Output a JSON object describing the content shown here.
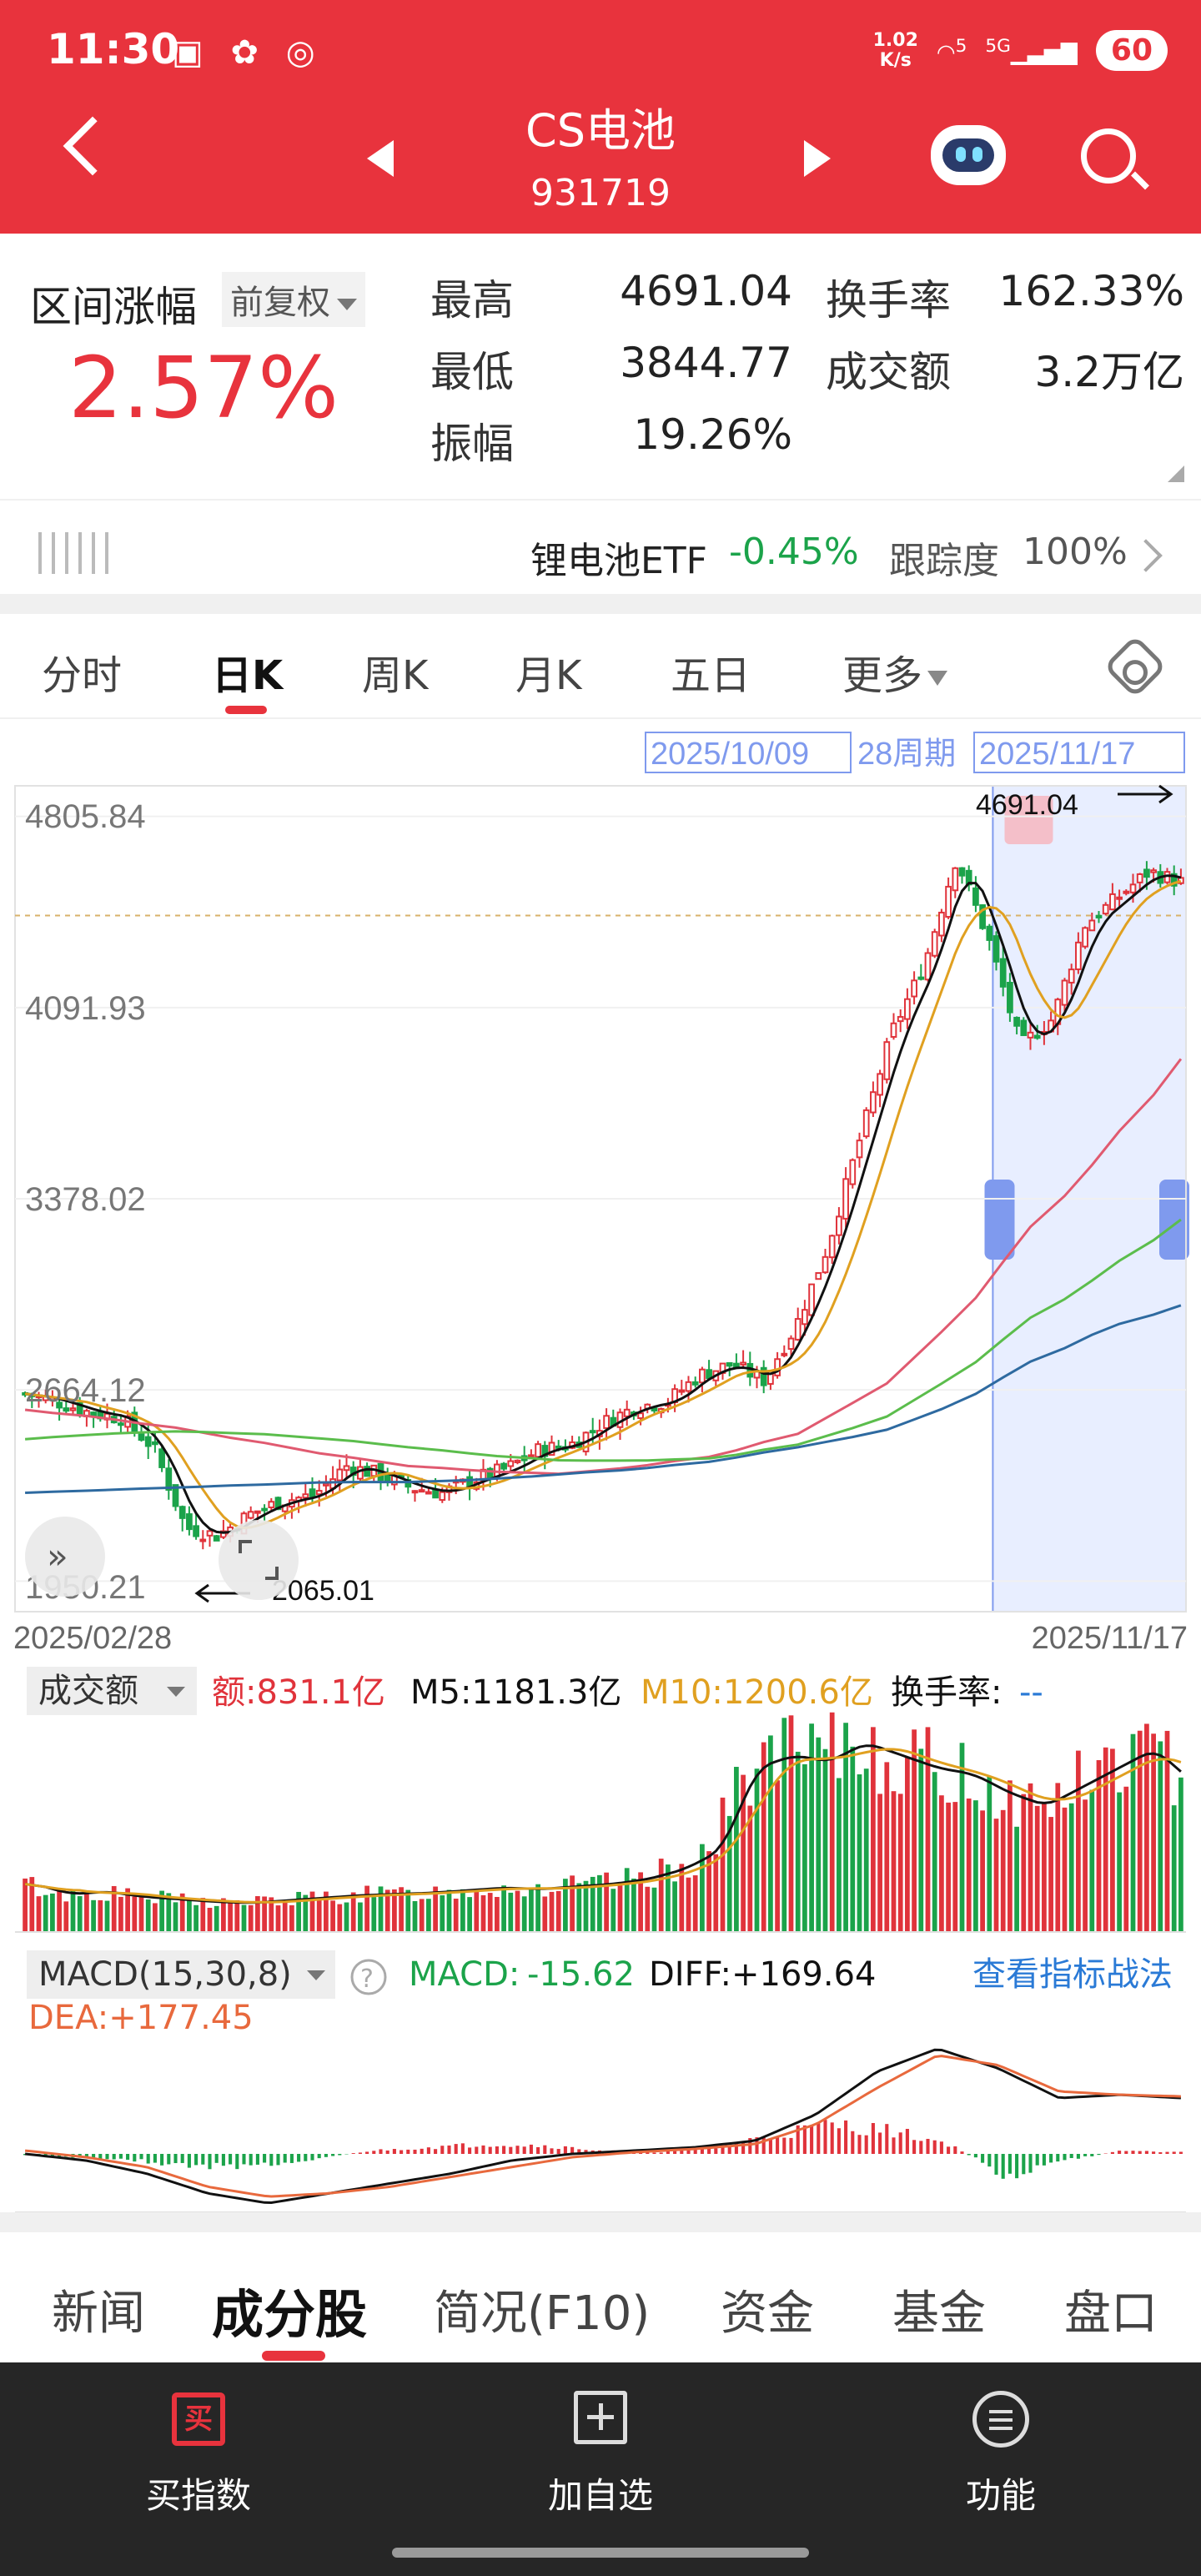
{
  "status_bar": {
    "time": "11:30",
    "net_speed_value": "1.02",
    "net_speed_unit": "K/s",
    "wifi_label": "5",
    "cell_label": "5G",
    "battery": "60"
  },
  "header": {
    "title": "CS电池",
    "code": "931719"
  },
  "stats": {
    "range_label": "区间涨幅",
    "adjust_option": "前复权",
    "range_change": "2.57%",
    "high_label": "最高",
    "high_value": "4691.04",
    "low_label": "最低",
    "low_value": "3844.77",
    "amplitude_label": "振幅",
    "amplitude_value": "19.26%",
    "turnover_label": "换手率",
    "turnover_value": "162.33%",
    "amount_label": "成交额",
    "amount_value": "3.2万亿"
  },
  "etf": {
    "name": "锂电池ETF",
    "change": "-0.45%",
    "tracking_label": "跟踪度",
    "tracking_value": "100%"
  },
  "chart_tabs": [
    "分时",
    "日K",
    "周K",
    "月K",
    "五日",
    "更多"
  ],
  "active_chart_tab": "日K",
  "chart_data": {
    "type": "candlestick",
    "price_axis_ticks": [
      "4805.84",
      "4091.93",
      "3378.02",
      "2664.12",
      "1950.21"
    ],
    "price_axis_values": [
      4805.84,
      4091.93,
      3378.02,
      2664.12,
      1950.21
    ],
    "x_start_label": "2025/02/28",
    "x_end_label": "2025/11/17",
    "high_marker": "4691.04",
    "low_marker": "2065.01",
    "selection": {
      "start": "2025/10/09",
      "period": "28周期",
      "end": "2025/11/17"
    },
    "close_anchors": [
      2650,
      2620,
      2580,
      2560,
      2450,
      2150,
      2120,
      2200,
      2250,
      2270,
      2380,
      2350,
      2300,
      2280,
      2330,
      2370,
      2440,
      2460,
      2540,
      2600,
      2620,
      2720,
      2760,
      2700,
      2900,
      3200,
      3600,
      4000,
      4250,
      4650,
      4350,
      3950,
      4050,
      4400,
      4500,
      4600,
      4560
    ],
    "ma_anchors": {
      "ma_pink": [
        2590,
        2560,
        2520,
        2470,
        2420,
        2380,
        2360,
        2350,
        2380,
        2420,
        2500,
        2650,
        2900,
        3250,
        3550,
        3900
      ],
      "ma_green": [
        2480,
        2500,
        2510,
        2500,
        2480,
        2450,
        2420,
        2400,
        2400,
        2410,
        2460,
        2540,
        2700,
        2920,
        3100,
        3300
      ],
      "ma_blue": [
        2280,
        2290,
        2300,
        2310,
        2320,
        2320,
        2330,
        2350,
        2370,
        2400,
        2450,
        2500,
        2600,
        2760,
        2890,
        2980
      ]
    },
    "volume_panel": {
      "selector": "成交额",
      "amount_label": "额:831.1亿",
      "ma5_label": "M5:1181.3亿",
      "ma10_label": "M10:1200.6亿",
      "turnover_label": "换手率:",
      "turnover_value": "--",
      "bar_anchors": [
        380,
        300,
        320,
        280,
        260,
        240,
        230,
        250,
        270,
        290,
        300,
        310,
        330,
        350,
        340,
        360,
        380,
        420,
        500,
        650,
        1300,
        1400,
        1350,
        1500,
        1400,
        1300,
        1250,
        1100,
        1000,
        1150,
        1300,
        1450,
        1200
      ]
    },
    "macd_panel": {
      "selector": "MACD(15,30,8)",
      "macd_label": "MACD:",
      "macd_value": "-15.62",
      "diff_label": "DIFF:+169.64",
      "dea_label": "DEA:+177.45",
      "strategy_link": "查看指标战法",
      "diff_anchors": [
        0,
        -20,
        -60,
        -120,
        -150,
        -120,
        -90,
        -60,
        -20,
        0,
        10,
        20,
        40,
        120,
        250,
        320,
        260,
        170,
        180,
        170
      ],
      "dea_anchors": [
        10,
        -10,
        -40,
        -100,
        -130,
        -120,
        -100,
        -70,
        -40,
        -10,
        5,
        15,
        30,
        90,
        200,
        300,
        270,
        190,
        180,
        175
      ],
      "hist_anchors": [
        -5,
        -10,
        -20,
        -40,
        -35,
        -15,
        10,
        20,
        30,
        25,
        10,
        5,
        20,
        60,
        90,
        70,
        30,
        -70,
        -20,
        10,
        5
      ]
    }
  },
  "bottom_tabs": [
    "新闻",
    "成分股",
    "简况(F10)",
    "资金",
    "基金",
    "盘口"
  ],
  "active_bottom_tab": "成分股",
  "footer": {
    "buy_icon": "买",
    "buy_label": "买指数",
    "add_label": "加自选",
    "func_label": "功能"
  },
  "colors": {
    "brand_red": "#e8333d",
    "up": "#e0333b",
    "down": "#1ba34a",
    "ma5": "#111111",
    "ma10": "#e0a020",
    "ma20": "#e05a70",
    "ma60": "#5bbd4c",
    "ma120": "#2e6aa0",
    "selection": "#e8eeff"
  }
}
